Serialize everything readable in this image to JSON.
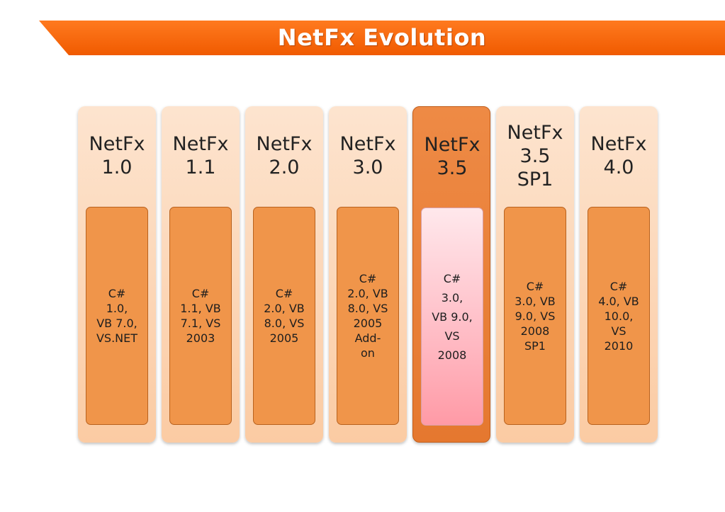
{
  "title": "NetFx Evolution",
  "columns": [
    {
      "name": "NetFx\n1.0",
      "detail": "C#\n1.0,\nVB 7.0,\nVS.NET",
      "active": false
    },
    {
      "name": "NetFx\n1.1",
      "detail": "C#\n1.1, VB\n7.1, VS\n2003",
      "active": false
    },
    {
      "name": "NetFx\n2.0",
      "detail": "C#\n2.0, VB\n8.0, VS\n2005",
      "active": false
    },
    {
      "name": "NetFx\n3.0",
      "detail": "C#\n2.0, VB\n8.0, VS\n2005\nAdd-\non",
      "active": false
    },
    {
      "name": "NetFx\n3.5",
      "detail": "C#\n3.0,\nVB 9.0,\nVS\n2008",
      "active": true
    },
    {
      "name": "NetFx\n3.5\nSP1",
      "detail": "C#\n3.0, VB\n9.0, VS\n2008\nSP1",
      "active": false
    },
    {
      "name": "NetFx\n4.0",
      "detail": "C#\n4.0, VB\n10.0,\nVS\n2010",
      "active": false
    }
  ],
  "colors": {
    "banner": "#f05a00",
    "column_bg": "#fbcba3",
    "column_active": "#e5782f",
    "inner_bg": "#f0954a",
    "inner_active": "#ffb3bd"
  }
}
